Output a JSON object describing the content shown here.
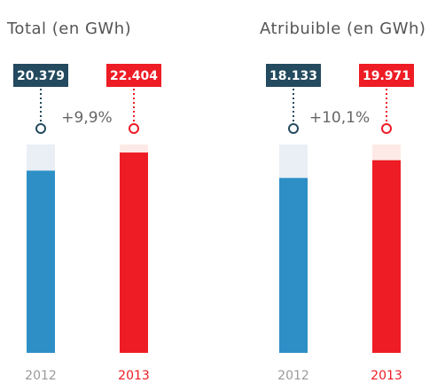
{
  "chart_data": [
    {
      "type": "bar",
      "title": "Total (en GWh)",
      "annotation": "+9,9%",
      "categories": [
        "2012",
        "2013"
      ],
      "values": [
        20379,
        22404
      ],
      "value_labels": [
        "20.379",
        "22.404"
      ],
      "colors": [
        "#2e8fc6",
        "#ee1c25"
      ],
      "track_colors": [
        "#e9eff5",
        "#fdeae6"
      ],
      "label_colors": [
        "#234a5e",
        "#ee1c25"
      ],
      "category_label_colors": [
        "#9a9a9a",
        "#ee1c25"
      ],
      "ylim": [
        0,
        23300
      ]
    },
    {
      "type": "bar",
      "title": "Atribuible (en GWh)",
      "annotation": "+10,1%",
      "categories": [
        "2012",
        "2013"
      ],
      "values": [
        18133,
        19971
      ],
      "value_labels": [
        "18.133",
        "19.971"
      ],
      "colors": [
        "#2e8fc6",
        "#ee1c25"
      ],
      "track_colors": [
        "#e9eff5",
        "#fdeae6"
      ],
      "label_colors": [
        "#234a5e",
        "#ee1c25"
      ],
      "category_label_colors": [
        "#9a9a9a",
        "#ee1c25"
      ],
      "ylim": [
        0,
        21600
      ]
    }
  ]
}
